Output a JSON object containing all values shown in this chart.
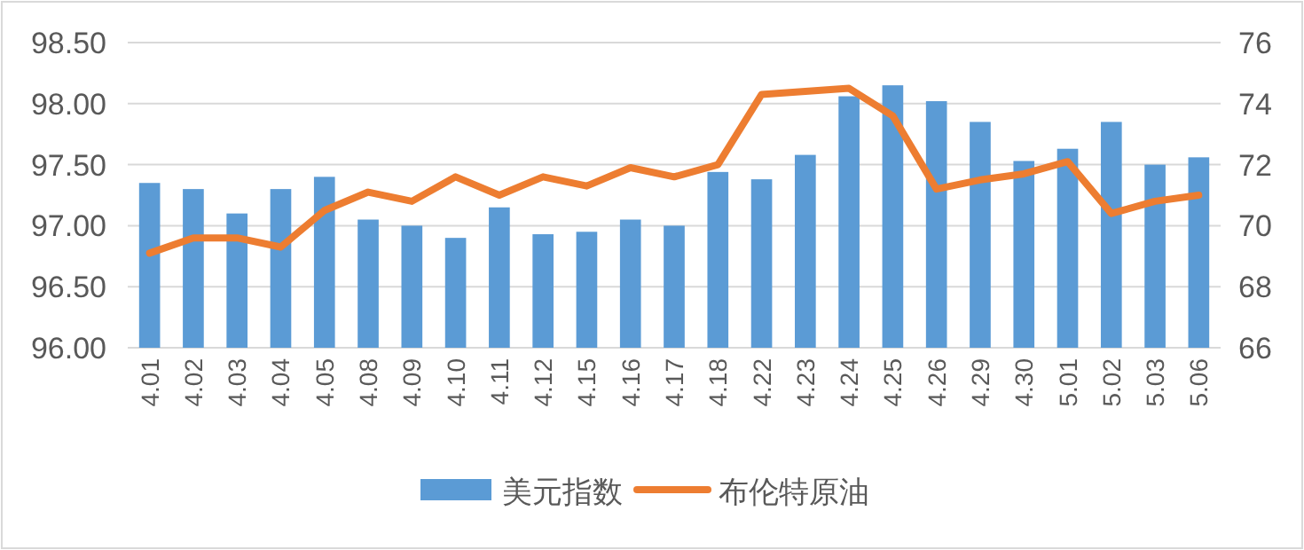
{
  "chart_data": {
    "type": "bar",
    "categories": [
      "4.01",
      "4.02",
      "4.03",
      "4.04",
      "4.05",
      "4.08",
      "4.09",
      "4.10",
      "4.11",
      "4.12",
      "4.15",
      "4.16",
      "4.17",
      "4.18",
      "4.22",
      "4.23",
      "4.24",
      "4.25",
      "4.26",
      "4.29",
      "4.30",
      "5.01",
      "5.02",
      "5.03",
      "5.06"
    ],
    "series": [
      {
        "name": "美元指数",
        "color": "#5b9bd5",
        "values": [
          97.35,
          97.3,
          97.1,
          97.3,
          97.4,
          97.05,
          97.0,
          96.9,
          97.15,
          96.93,
          96.95,
          97.05,
          97.0,
          97.44,
          97.38,
          97.58,
          98.06,
          98.15,
          98.02,
          97.85,
          97.53,
          97.63,
          97.85,
          97.5,
          97.56
        ]
      },
      {
        "name": "布伦特原油",
        "type": "line",
        "axis": "y2",
        "color": "#ed7d31",
        "values": [
          69.1,
          69.6,
          69.6,
          69.3,
          70.5,
          71.1,
          70.8,
          71.6,
          71.0,
          71.6,
          71.3,
          71.9,
          71.6,
          72.0,
          74.3,
          74.4,
          74.5,
          73.6,
          71.2,
          71.5,
          71.7,
          72.1,
          70.4,
          70.8,
          71.0
        ]
      }
    ],
    "ylim": [
      96,
      98.5
    ],
    "yticks": [
      {
        "value": 96,
        "label": "96.00"
      },
      {
        "value": 96.5,
        "label": "96.50"
      },
      {
        "value": 97,
        "label": "97.00"
      },
      {
        "value": 97.5,
        "label": "97.50"
      },
      {
        "value": 98,
        "label": "98.00"
      },
      {
        "value": 98.5,
        "label": "98.50"
      }
    ],
    "y2lim": [
      66,
      76
    ],
    "y2ticks": [
      66,
      68,
      70,
      72,
      74,
      76
    ],
    "grid": "y",
    "legend": "bottom"
  }
}
